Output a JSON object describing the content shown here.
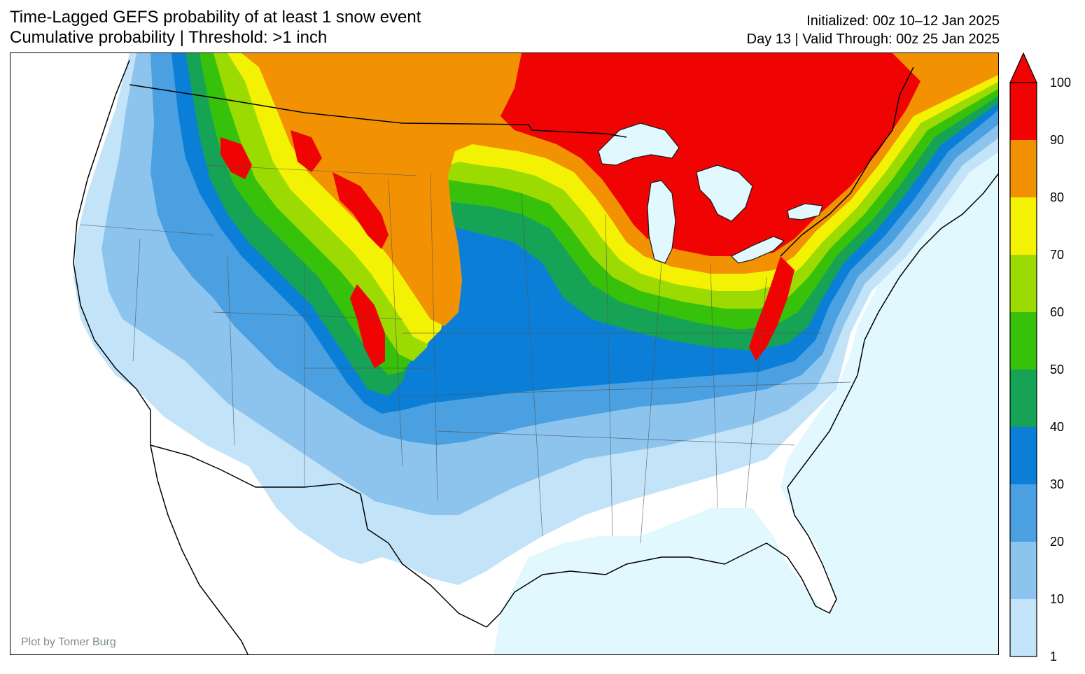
{
  "header": {
    "title_line1": "Time-Lagged GEFS probability of at least 1 snow event",
    "title_line2": "Cumulative probability | Threshold: >1 inch",
    "init_line": "Initialized: 00z 10–12 Jan 2025",
    "valid_line": "Day 13 | Valid Through: 00z 25 Jan 2025"
  },
  "credit": "Plot by Tomer Burg",
  "colorbar": {
    "levels": [
      1,
      10,
      20,
      30,
      40,
      50,
      60,
      70,
      80,
      90,
      100
    ],
    "labels": [
      "1",
      "10",
      "20",
      "30",
      "40",
      "50",
      "60",
      "70",
      "80",
      "90",
      "100"
    ],
    "colors": [
      "#c3e3f8",
      "#8cc4ee",
      "#4aa0e0",
      "#0b7fd8",
      "#16a355",
      "#37c10a",
      "#9bdb02",
      "#f4f204",
      "#f29203",
      "#ef0303"
    ],
    "extend": "max"
  },
  "colors": {
    "ocean": "#e1f8ff",
    "land_background": "#ffffff",
    "credit_text": "#7f8c8d"
  }
}
